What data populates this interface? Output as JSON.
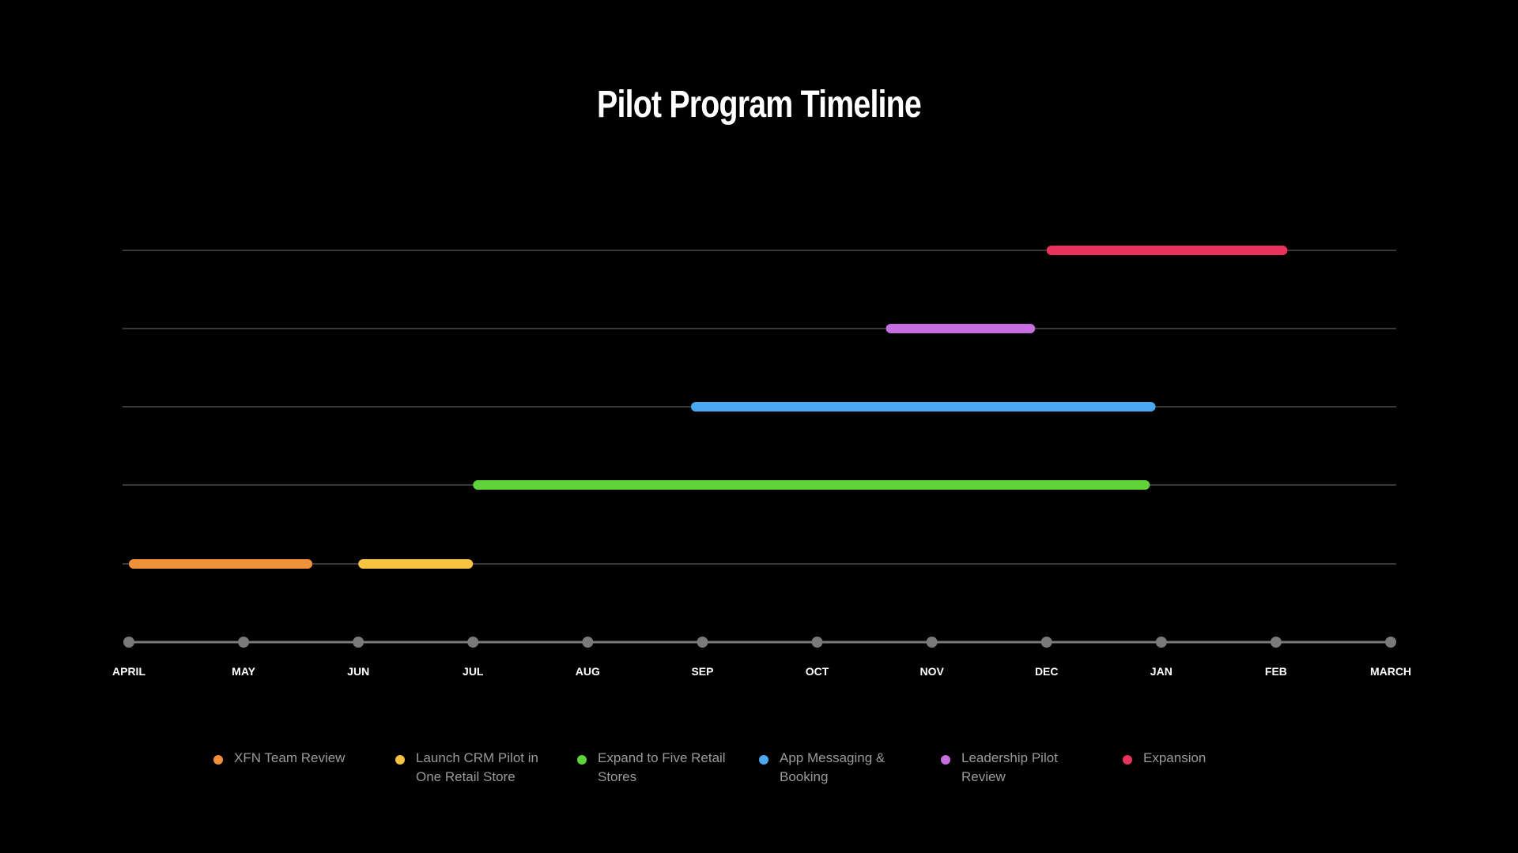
{
  "chart_data": {
    "type": "gantt",
    "title": "Pilot Program Timeline",
    "axis": {
      "ticks": [
        "APRIL",
        "MAY",
        "JUN",
        "JUL",
        "AUG",
        "SEP",
        "OCT",
        "NOV",
        "DEC",
        "JAN",
        "FEB",
        "MARCH"
      ]
    },
    "series": [
      {
        "name": "XFN Team Review",
        "color": "#f0913a",
        "start": 0.0,
        "end": 1.6,
        "row": 1
      },
      {
        "name": "Launch CRM Pilot in One Retail Store",
        "color": "#f6c342",
        "start": 2.0,
        "end": 3.0,
        "row": 1
      },
      {
        "name": "Expand to Five Retail Stores",
        "color": "#5fd33a",
        "start": 3.0,
        "end": 8.9,
        "row": 2
      },
      {
        "name": "App Messaging & Booking",
        "color": "#4aa8f0",
        "start": 4.9,
        "end": 8.95,
        "row": 3
      },
      {
        "name": "Leadership Pilot Review",
        "color": "#c86ee0",
        "start": 6.6,
        "end": 7.9,
        "row": 4
      },
      {
        "name": "Expansion",
        "color": "#e8335d",
        "start": 8.0,
        "end": 10.1,
        "row": 5
      }
    ],
    "grid": true,
    "legend_position": "bottom"
  },
  "colors": {
    "background": "#000000",
    "gridline": "#4a4a4a",
    "axis": "#7a7a7a",
    "tick_dot": "#7a7a7a"
  }
}
